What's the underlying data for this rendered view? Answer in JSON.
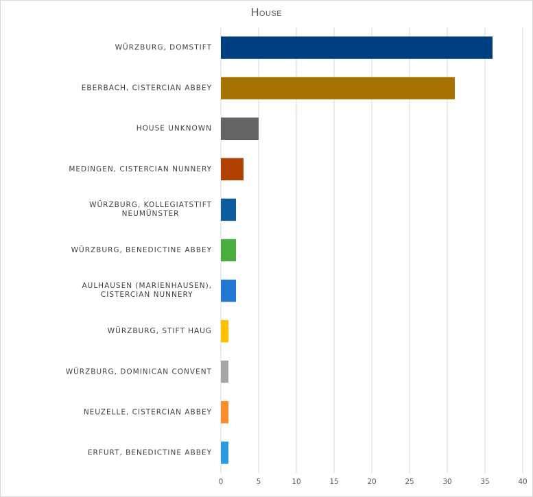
{
  "chart_data": {
    "type": "bar",
    "orientation": "horizontal",
    "title": "House",
    "categories": [
      "Würzburg, Domstift",
      "Eberbach, Cistercian abbey",
      "House unknown",
      "Medingen, Cistercian nunnery",
      "Würzburg, Kollegiatstift Neumünster",
      "Würzburg, Benedictine abbey",
      "Aulhausen (Marienhausen), Cistercian nunnery",
      "Würzburg, Stift Haug",
      "Würzburg, Dominican convent",
      "Neuzelle, Cistercian abbey",
      "Erfurt, Benedictine abbey"
    ],
    "values": [
      36,
      31,
      5,
      3,
      2,
      2,
      2,
      1,
      1,
      1,
      1
    ],
    "colors": [
      "#003f7f",
      "#a57200",
      "#636363",
      "#b14100",
      "#0d5c9b",
      "#4aad3f",
      "#2277d1",
      "#ffc000",
      "#a6a6a6",
      "#ff8c2a",
      "#2e9be0"
    ],
    "xlim": [
      0,
      40
    ],
    "xticks": [
      0,
      5,
      10,
      15,
      20,
      25,
      30,
      35,
      40
    ],
    "grid": "vertical",
    "legend": "none",
    "xlabel": "",
    "ylabel": ""
  }
}
